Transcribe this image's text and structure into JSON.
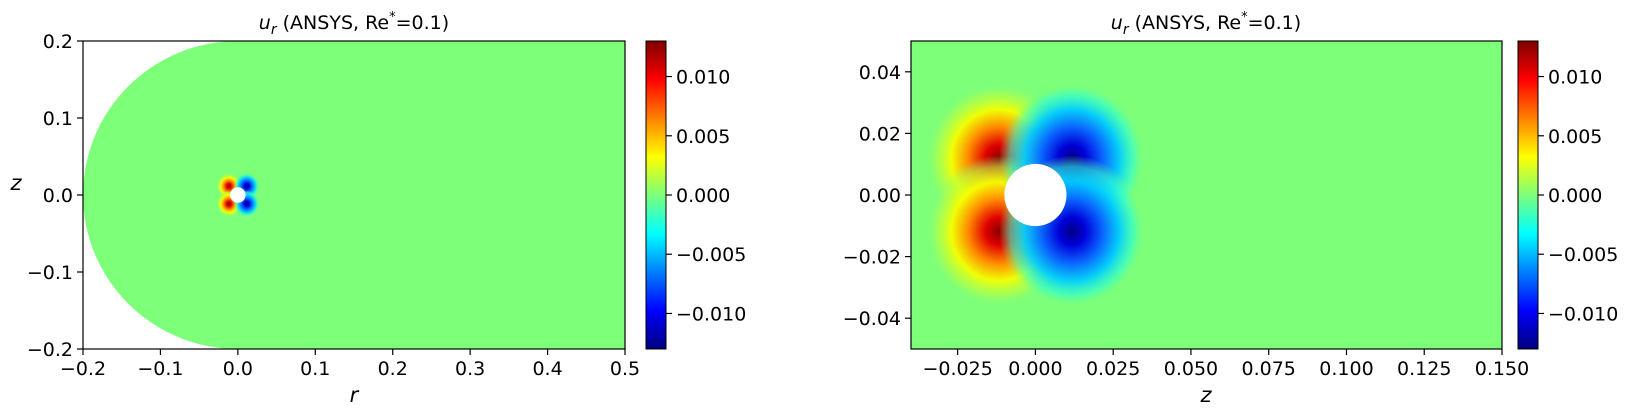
{
  "chart_data": [
    {
      "type": "heatmap",
      "title_var": "u",
      "title_sub": "r",
      "title_rest": " (ANSYS, Re",
      "title_sup": "*",
      "title_end": "=0.1)",
      "xlabel": "r",
      "ylabel": "z",
      "xlim": [
        -0.2,
        0.5
      ],
      "ylim": [
        -0.2,
        0.2
      ],
      "xticks": [
        -0.2,
        -0.1,
        0.0,
        0.1,
        0.2,
        0.3,
        0.4,
        0.5
      ],
      "xtick_labels": [
        "−0.2",
        "−0.1",
        "0.0",
        "0.1",
        "0.2",
        "0.3",
        "0.4",
        "0.5"
      ],
      "yticks": [
        -0.2,
        -0.1,
        0.0,
        0.1,
        0.2
      ],
      "ytick_labels": [
        "−0.2",
        "−0.1",
        "0.0",
        "0.1",
        "0.2"
      ],
      "domain_radius": 0.2,
      "sphere_radius": 0.01,
      "colormap": "jet",
      "vmin": -0.013,
      "vmax": 0.013,
      "colorbar_ticks": [
        0.01,
        0.005,
        0.0,
        -0.005,
        -0.01
      ],
      "colorbar_labels": [
        "0.010",
        "0.005",
        "0.000",
        "−0.005",
        "−0.010"
      ],
      "grid": false
    },
    {
      "type": "heatmap",
      "title_var": "u",
      "title_sub": "r",
      "title_rest": " (ANSYS, Re",
      "title_sup": "*",
      "title_end": "=0.1)",
      "xlabel": "z",
      "ylabel": "",
      "xlim": [
        -0.04,
        0.15
      ],
      "ylim": [
        -0.05,
        0.05
      ],
      "xticks": [
        -0.025,
        0.0,
        0.025,
        0.05,
        0.075,
        0.1,
        0.125,
        0.15
      ],
      "xtick_labels": [
        "−0.025",
        "0.000",
        "0.025",
        "0.050",
        "0.075",
        "0.100",
        "0.125",
        "0.150"
      ],
      "yticks": [
        0.04,
        0.02,
        0.0,
        -0.02,
        -0.04
      ],
      "ytick_labels": [
        "0.04",
        "0.02",
        "0.00",
        "−0.02",
        "−0.04"
      ],
      "sphere_radius": 0.01,
      "colormap": "jet",
      "vmin": -0.013,
      "vmax": 0.013,
      "colorbar_ticks": [
        0.01,
        0.005,
        0.0,
        -0.005,
        -0.01
      ],
      "colorbar_labels": [
        "0.010",
        "0.005",
        "0.000",
        "−0.005",
        "−0.010"
      ],
      "grid": false
    }
  ]
}
